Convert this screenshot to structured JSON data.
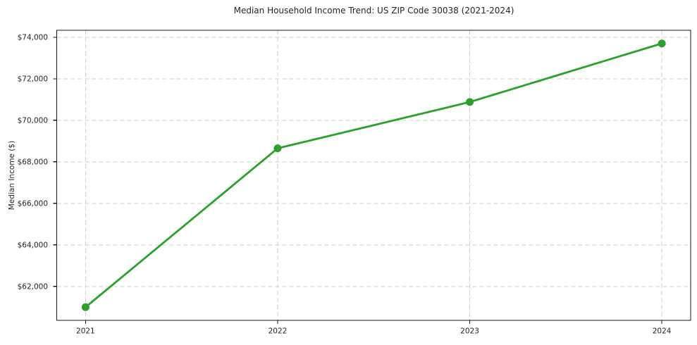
{
  "figure": {
    "background": "#ffffff"
  },
  "chart_data": {
    "type": "line",
    "title": "Median Household Income Trend: US ZIP Code 30038 (2021-2024)",
    "xlabel": "",
    "ylabel": "Median Income ($)",
    "x": [
      2021,
      2022,
      2023,
      2024
    ],
    "x_tick_labels": [
      "2021",
      "2022",
      "2023",
      "2024"
    ],
    "values": [
      61000,
      68650,
      70880,
      73700
    ],
    "y_ticks": [
      62000,
      64000,
      66000,
      68000,
      70000,
      72000,
      74000
    ],
    "y_tick_labels": [
      "$62,000",
      "$64,000",
      "$66,000",
      "$68,000",
      "$70,000",
      "$72,000",
      "$74,000"
    ],
    "xlim": [
      2020.85,
      2024.15
    ],
    "ylim": [
      60365,
      74335
    ],
    "grid": true,
    "grid_style": "dashed",
    "legend": "none",
    "line_color": "#2ca02c",
    "marker": "circle",
    "grid_color": "#cfcfcf",
    "axis_color": "#1a1a1a",
    "text_color": "#262626"
  }
}
